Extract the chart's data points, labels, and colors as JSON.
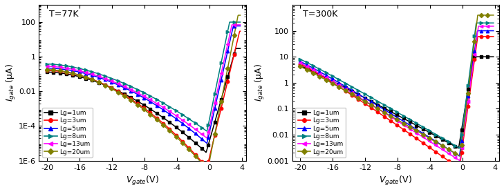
{
  "title_left": "T=77K",
  "title_right": "T=300K",
  "colors": [
    "black",
    "red",
    "blue",
    "#008080",
    "magenta",
    "#808000"
  ],
  "labels": [
    "Lg=1um",
    "Lg=3um",
    "Lg=5um",
    "Lg=8um",
    "Lg=13um",
    "Lg=20um"
  ],
  "markers": [
    "s",
    "o",
    "^",
    ">",
    "<",
    "D"
  ],
  "xlim": [
    -21,
    4.5
  ],
  "xticks": [
    -20,
    -16,
    -12,
    -8,
    -4,
    0,
    4
  ],
  "ylim_left": [
    1e-06,
    1000
  ],
  "ylim_right": [
    0.001,
    1000
  ],
  "curves_77K": {
    "left_vals": [
      0.13,
      0.16,
      0.22,
      0.38,
      0.28,
      0.18
    ],
    "min_vals": [
      3e-06,
      4e-07,
      1e-05,
      5e-05,
      2e-05,
      3e-07
    ],
    "vmin_pos": [
      -0.4,
      -0.3,
      -0.3,
      -0.3,
      -0.3,
      -0.2
    ],
    "fwd_slope": [
      3.8,
      4.5,
      4.8,
      5.2,
      4.9,
      5.5
    ],
    "fwd_max": [
      3.0,
      30,
      60,
      100,
      70,
      250
    ],
    "curve_slope": [
      1.8,
      1.9,
      1.85,
      1.7,
      1.75,
      1.82
    ]
  },
  "curves_300K": {
    "left_vals": [
      4.5,
      5.2,
      6.5,
      8.0,
      5.8,
      4.2
    ],
    "min_vals": [
      0.003,
      0.0005,
      0.0015,
      0.003,
      0.001,
      0.0015
    ],
    "vmin_pos": [
      -0.5,
      -0.4,
      -0.4,
      -0.35,
      -0.35,
      -0.3
    ],
    "fwd_slope": [
      4.5,
      5.2,
      5.0,
      5.5,
      5.2,
      5.8
    ],
    "fwd_max": [
      10,
      60,
      100,
      200,
      150,
      400
    ],
    "curve_slope": [
      1.05,
      1.08,
      1.06,
      1.04,
      1.05,
      1.04
    ]
  }
}
